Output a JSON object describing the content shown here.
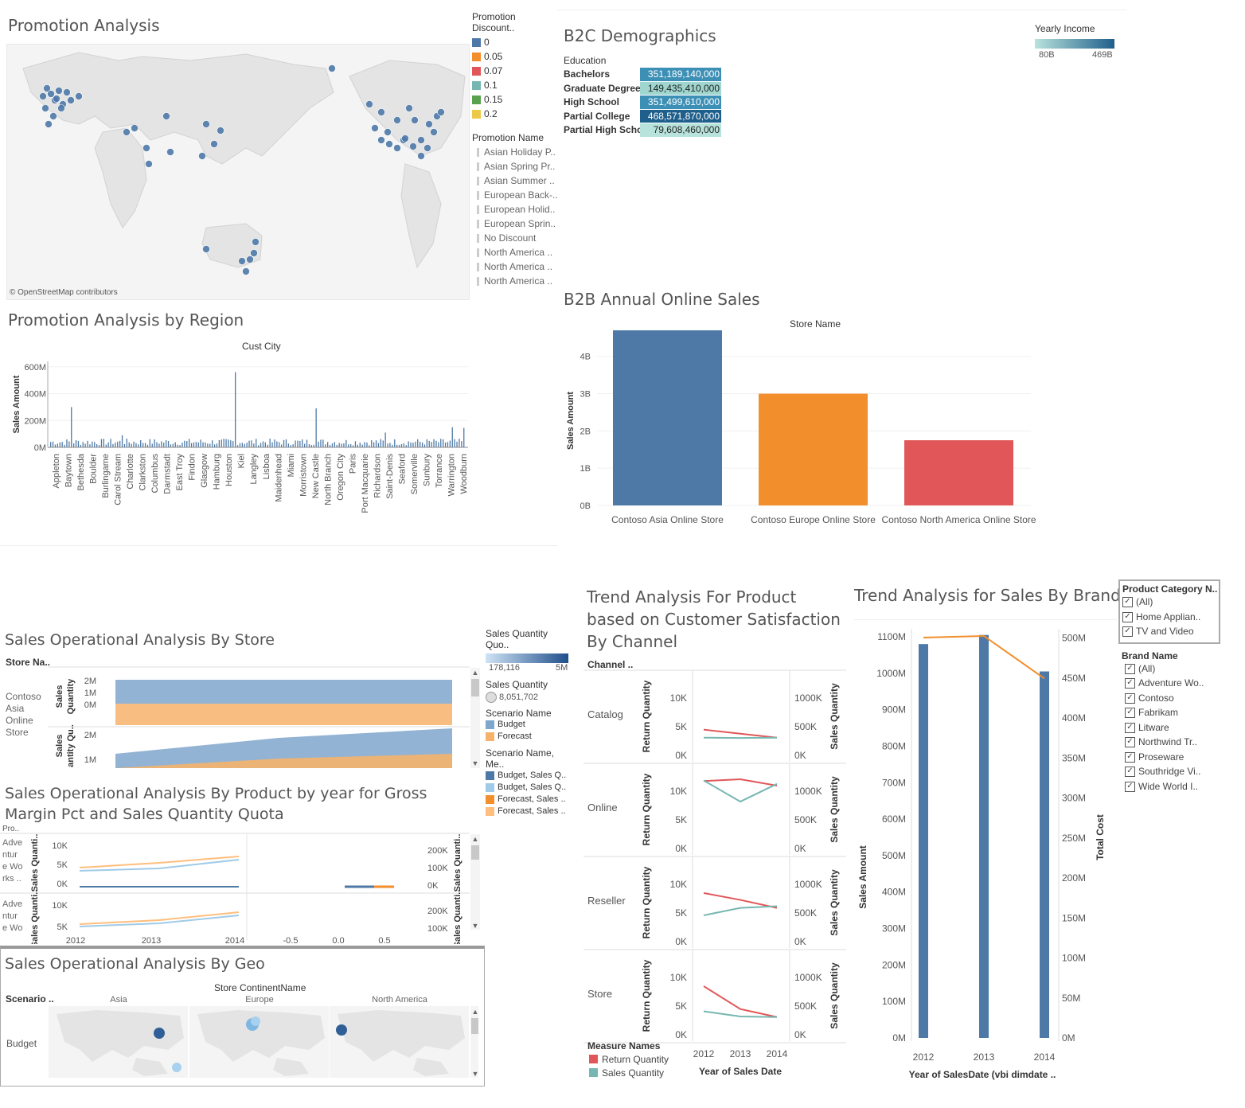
{
  "promotion_analysis": {
    "title": "Promotion Analysis",
    "map_credit": "© OpenStreetMap contributors",
    "legend_discount_title": "Promotion Discount..",
    "discounts": [
      {
        "label": "0",
        "color": "#4e79a7"
      },
      {
        "label": "0.05",
        "color": "#f28e2b"
      },
      {
        "label": "0.07",
        "color": "#e15759"
      },
      {
        "label": "0.1",
        "color": "#76b7b2"
      },
      {
        "label": "0.15",
        "color": "#59a14f"
      },
      {
        "label": "0.2",
        "color": "#edc948"
      }
    ],
    "legend_promo_title": "Promotion Name",
    "promos": [
      "Asian Holiday P..",
      "Asian Spring Pr..",
      "Asian Summer ..",
      "European Back-..",
      "European Holid..",
      "European Sprin..",
      "No Discount",
      "North America ..",
      "North America ..",
      "North America .."
    ]
  },
  "b2c": {
    "title": "B2C Demographics",
    "legend_title": "Yearly Income",
    "legend_min": "80B",
    "legend_max": "469B",
    "col_header": "Education",
    "rows": [
      {
        "label": "Bachelors",
        "value": "351,189,140,000",
        "color": "#3c8fb5"
      },
      {
        "label": "Graduate Degree",
        "value": "149,435,410,000",
        "color": "#9fd6d0"
      },
      {
        "label": "High School",
        "value": "351,499,610,000",
        "color": "#3c8fb5"
      },
      {
        "label": "Partial College",
        "value": "468,571,870,000",
        "color": "#1f5f8b"
      },
      {
        "label": "Partial High School",
        "value": "79,608,460,000",
        "color": "#b8e3dd"
      }
    ]
  },
  "region": {
    "title": "Promotion Analysis by Region",
    "header": "Cust City",
    "ylabel": "Sales Amount",
    "yticks": [
      "600M",
      "400M",
      "200M",
      "0M"
    ],
    "cities": [
      "Appleton",
      "Baytown",
      "Bethesda",
      "Boulder",
      "Burlingame",
      "Carol Stream",
      "Charlotte",
      "Clarkston",
      "Columbus",
      "Darmstadt",
      "East Troy",
      "Findon",
      "Glasgow",
      "Hamburg",
      "Houston",
      "Kiel",
      "Langley",
      "Lisboa",
      "Maidenhead",
      "Miami",
      "Morristown",
      "New Castle",
      "North Branch",
      "Oregon City",
      "Paris",
      "Port Macquarie",
      "Richardson",
      "Saint-Denis",
      "Seaford",
      "Somerville",
      "Sunbury",
      "Torrance",
      "Warrington",
      "Woodburn"
    ]
  },
  "chart_data": [
    {
      "type": "bar",
      "title": "B2B Annual Online Sales",
      "header": "Store Name",
      "ylabel": "Sales Amount",
      "categories": [
        "Contoso Asia Online Store",
        "Contoso Europe Online Store",
        "Contoso North America Online Store"
      ],
      "values": [
        4.7,
        3.0,
        1.75
      ],
      "colors": [
        "#4e79a7",
        "#f28e2b",
        "#e15759"
      ],
      "yticks": [
        "0B",
        "1B",
        "2B",
        "3B",
        "4B"
      ],
      "ylim": [
        0,
        5
      ]
    },
    {
      "type": "bar",
      "title": "Trend Analysis for Sales By Brand",
      "xlabel": "Year of SalesDate (vbi dimdate ..",
      "ylabel": "Sales Amount",
      "y2label": "Total Cost",
      "categories": [
        "2012",
        "2013",
        "2014"
      ],
      "values": [
        1080,
        1105,
        1005
      ],
      "line_values": [
        499,
        501,
        448
      ],
      "yticks": [
        "0M",
        "100M",
        "200M",
        "300M",
        "400M",
        "500M",
        "600M",
        "700M",
        "800M",
        "900M",
        "1000M",
        "1100M"
      ],
      "y2ticks": [
        "0M",
        "50M",
        "100M",
        "150M",
        "200M",
        "250M",
        "300M",
        "350M",
        "400M",
        "450M",
        "500M"
      ],
      "ylim": [
        0,
        1100
      ],
      "y2lim": [
        0,
        500
      ]
    },
    {
      "type": "line",
      "title": "Trend Analysis For Product based on Customer Satisfaction By Channel",
      "header": "Channel ..",
      "xlabel": "Year of Sales Date",
      "x": [
        "2012",
        "2013",
        "2014"
      ],
      "ylabel": "Return Quantity",
      "y2label": "Sales Quantity",
      "yticks": [
        "0K",
        "5K",
        "10K"
      ],
      "y2ticks": [
        "0K",
        "500K",
        "1000K"
      ],
      "channels": [
        {
          "name": "Catalog",
          "ret": [
            4.5,
            3.8,
            3.1
          ],
          "sales": [
            310,
            305,
            310
          ]
        },
        {
          "name": "Online",
          "ret": [
            11.8,
            12.1,
            11.0
          ],
          "sales": [
            1190,
            820,
            1130
          ]
        },
        {
          "name": "Reseller",
          "ret": [
            8.5,
            7.3,
            5.9
          ],
          "sales": [
            460,
            590,
            620
          ]
        },
        {
          "name": "Store",
          "ret": [
            8.5,
            4.5,
            3.1
          ],
          "sales": [
            410,
            320,
            310
          ]
        }
      ],
      "legend_title": "Measure Names",
      "legend": [
        {
          "name": "Return Quantity",
          "color": "#e15759"
        },
        {
          "name": "Sales Quantity",
          "color": "#76b7b2"
        }
      ]
    }
  ],
  "ops_store": {
    "title": "Sales Operational Analysis By Store",
    "header": "Store Na..",
    "store": "Contoso Asia Online Store",
    "row1_label": "Sales Quantity",
    "row1_ticks": [
      "2M",
      "1M",
      "0M"
    ],
    "row2_label": "Sales Qu..antity Qu..",
    "row2_ticks": [
      "2M",
      "1M"
    ]
  },
  "ops_legend": {
    "quota_title": "Sales Quantity Quo..",
    "quota_min": "178,116",
    "quota_max": "5M",
    "qty_title": "Sales Quantity",
    "qty_value": "8,051,702",
    "scenario_title": "Scenario Name",
    "scenarios": [
      {
        "name": "Budget",
        "color": "#7fa6cb"
      },
      {
        "name": "Forecast",
        "color": "#f6b26b"
      }
    ],
    "scenario_me_title": "Scenario Name, Me..",
    "scenario_me": [
      {
        "name": "Budget, Sales Q..",
        "color": "#4e79a7"
      },
      {
        "name": "Budget, Sales Q..",
        "color": "#a0cbe8"
      },
      {
        "name": "Forecast, Sales ..",
        "color": "#f28e2b"
      },
      {
        "name": "Forecast, Sales ..",
        "color": "#ffbe7d"
      }
    ]
  },
  "ops_product": {
    "title": "Sales Operational Analysis By Product by year for Gross Margin Pct and Sales Quantity Quota",
    "header": "Pro..",
    "row1_label": "Adve ntur e Wo rks ..",
    "row2_label": "Adve ntur e Wo",
    "left_axis": "Sales Quanti..",
    "right_axis": "Sales Quanti..",
    "lticks": [
      "10K",
      "5K",
      "0K"
    ],
    "rticks": [
      "200K",
      "100K",
      "0K"
    ],
    "lticks2": [
      "10K",
      "5K"
    ],
    "rticks2": [
      "200K",
      "100K"
    ],
    "xticks": [
      "2012",
      "2013",
      "2014",
      "-0.5",
      "0.0",
      "0.5"
    ]
  },
  "ops_geo": {
    "title": "Sales Operational Analysis By Geo",
    "header": "Store ContinentName",
    "row_header": "Scenario ..",
    "continents": [
      "Asia",
      "Europe",
      "North America"
    ],
    "row": "Budget"
  },
  "filters": {
    "cat_title": "Product Category N..",
    "cats": [
      "(All)",
      "Home Applian..",
      "TV and Video"
    ],
    "brand_title": "Brand Name",
    "brands": [
      "(All)",
      "Adventure Wo..",
      "Contoso",
      "Fabrikam",
      "Litware",
      "Northwind Tr..",
      "Proseware",
      "Southridge Vi..",
      "Wide World I.."
    ],
    "check": "✓"
  }
}
